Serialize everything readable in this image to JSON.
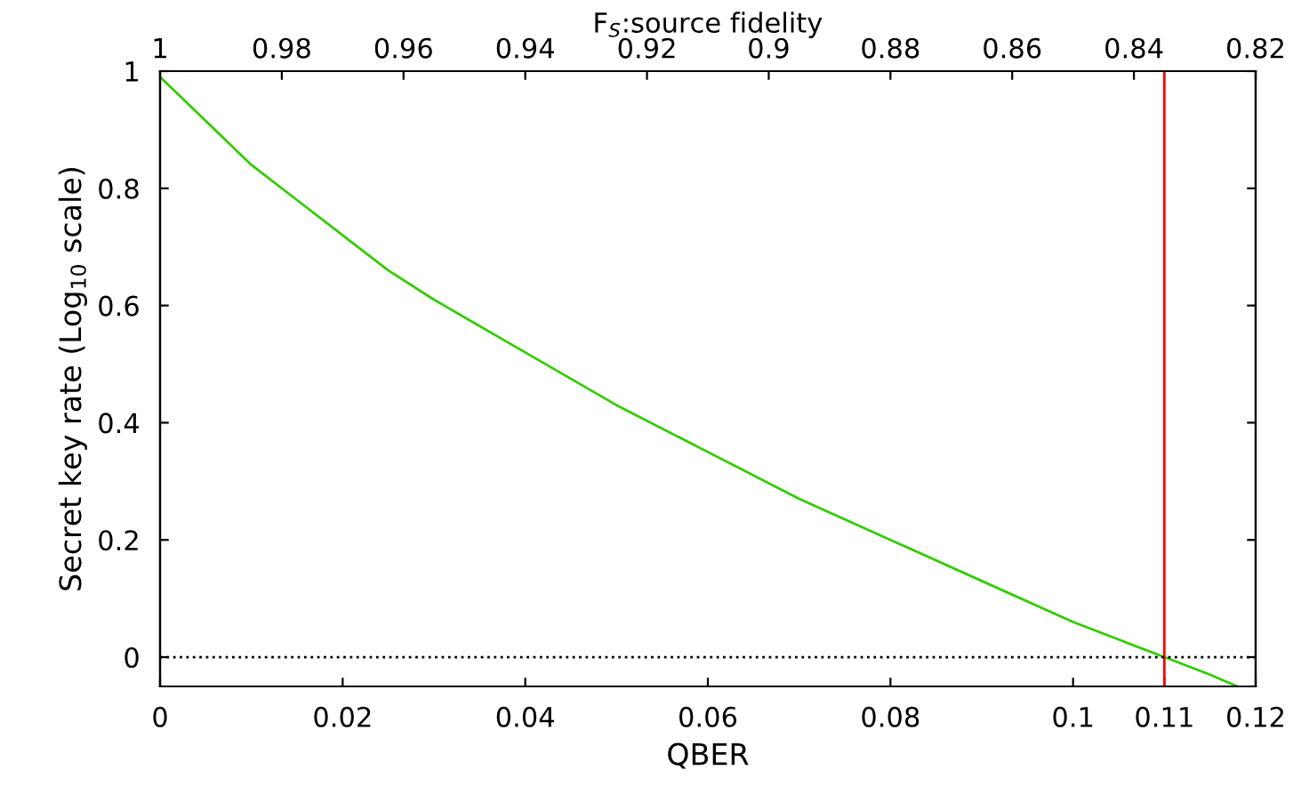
{
  "chart_data": {
    "type": "line",
    "xlabel": "QBER",
    "ylabel": "Secret key rate (Log$_{10}$ scale)",
    "x2label": "F$_{S}$:source fidelity",
    "series": [
      {
        "color": "#33cc00",
        "x": [
          0,
          0.002,
          0.01,
          0.015,
          0.02,
          0.025,
          0.03,
          0.04,
          0.05,
          0.06,
          0.07,
          0.08,
          0.09,
          0.1,
          0.105,
          0.11,
          0.115,
          0.118
        ],
        "values": [
          0.99,
          0.96,
          0.84,
          0.78,
          0.72,
          0.66,
          0.61,
          0.52,
          0.43,
          0.35,
          0.27,
          0.2,
          0.13,
          0.06,
          0.03,
          0.0,
          -0.03,
          -0.05
        ]
      }
    ],
    "xlim": [
      0,
      0.12
    ],
    "xticks": [
      0,
      0.02,
      0.04,
      0.06,
      0.08,
      0.1,
      0.11,
      0.12
    ],
    "ylim": [
      -0.05,
      1
    ],
    "yticks": [
      0,
      0.2,
      0.4,
      0.6,
      0.8,
      1
    ],
    "x2lim": [
      1,
      0.82
    ],
    "x2ticks": [
      1,
      0.98,
      0.96,
      0.94,
      0.92,
      0.9,
      0.88,
      0.86,
      0.84,
      0.82
    ],
    "ref_lines": [
      {
        "axis": "x",
        "value": 0.11,
        "color": "#ff0000",
        "line_style": "solid"
      },
      {
        "axis": "y",
        "value": 0,
        "color": "#000000",
        "line_style": "dotted"
      }
    ],
    "grid": false,
    "legend": false,
    "marker": "none",
    "line_style": "solid"
  }
}
